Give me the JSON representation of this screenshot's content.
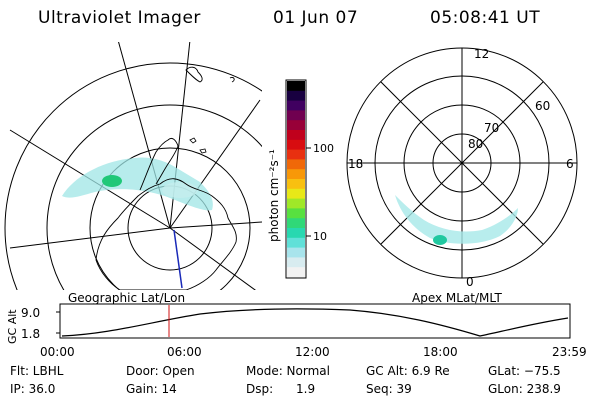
{
  "header": {
    "instrument": "Ultraviolet Imager",
    "date": "01 Jun 07",
    "time": "05:08:41 UT"
  },
  "colorbar": {
    "unit_label": "photon cm⁻²s⁻¹",
    "ticks": [
      "100",
      "10"
    ],
    "colors": [
      "#f2f2f2",
      "#d8ecf0",
      "#a8e4ec",
      "#60e0d8",
      "#28d8b0",
      "#30d878",
      "#58e040",
      "#a0e828",
      "#e8e818",
      "#f8c010",
      "#f89808",
      "#f06808",
      "#e83010",
      "#d80c10",
      "#c0001c",
      "#980038",
      "#700050",
      "#400060",
      "#180040",
      "#000000"
    ]
  },
  "left_map": {
    "caption": "Geographic Lat/Lon",
    "aurora_color": "#9fe6e6",
    "aurora_peak_color": "#20c878",
    "pointer_color": "#1a2ab8"
  },
  "right_map": {
    "caption": "Apex MLat/MLT",
    "lat_labels": [
      "60",
      "70",
      "80"
    ],
    "mlt_labels": {
      "top": "12",
      "bottom": "0",
      "left": "18",
      "right": "6"
    },
    "aurora_color": "#a6e8e8",
    "aurora_peak_color": "#20c8a0"
  },
  "altitude_plot": {
    "ylabel": "GC Alt",
    "yticks": [
      "9.0",
      "1.8"
    ],
    "xticks": [
      "00:00",
      "06:00",
      "12:00",
      "18:00",
      "23:59"
    ],
    "marker_color": "#d01010"
  },
  "info": {
    "filter": "Flt: LBHL",
    "ip": "IP: 36.0",
    "door": "Door: Open",
    "gain": "Gain: 14",
    "mode": "Mode: Normal",
    "dsp": "Dsp:      1.9",
    "gc_alt": "GC Alt: 6.9 Re",
    "seq": "Seq: 39",
    "glat": "GLat: −75.5",
    "glon": "GLon: 238.9"
  }
}
